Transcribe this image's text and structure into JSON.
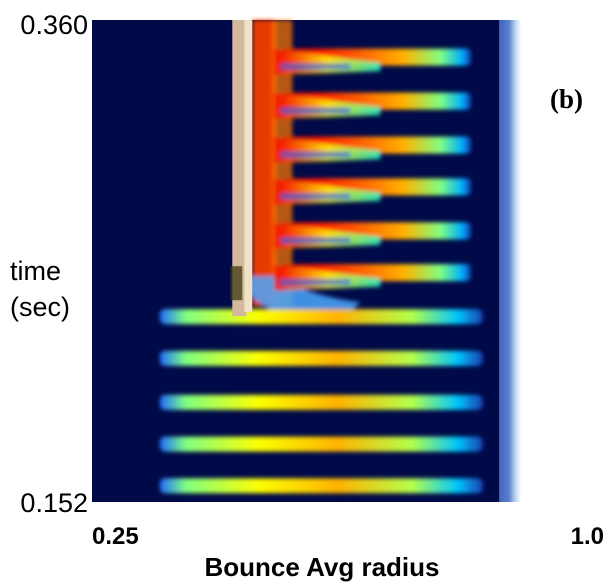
{
  "chart_data": {
    "type": "heatmap",
    "panel_label": "(b)",
    "xlabel": "Bounce Avg radius",
    "ylabel": "time\n(sec)",
    "ylabel_lines": [
      "time",
      "(sec)"
    ],
    "xlim": [
      0.25,
      1.0
    ],
    "ylim": [
      0.152,
      0.36
    ],
    "x_ticks": [
      "0.25",
      "1.0"
    ],
    "y_ticks": [
      "0.152",
      "0.360"
    ],
    "colormap": "jet",
    "background_color": "#000a48",
    "band_count": 11,
    "band_times": [
      0.159,
      0.177,
      0.195,
      0.214,
      0.232,
      0.251,
      0.269,
      0.288,
      0.306,
      0.325,
      0.344
    ],
    "front_radius": 0.53,
    "band_outer_radius": 0.92,
    "wall_radius": 0.97
  }
}
